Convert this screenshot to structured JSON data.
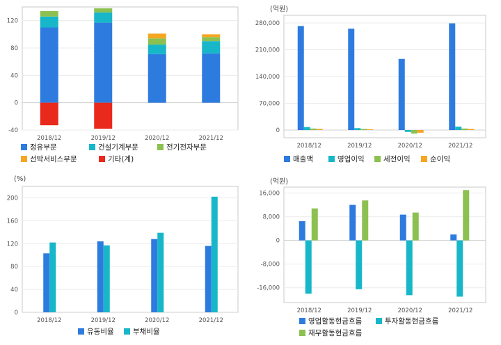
{
  "chart_data": [
    {
      "type": "bar",
      "stacked": true,
      "unit_label": "",
      "categories": [
        "2018/12",
        "2019/12",
        "2020/12",
        "2021/12"
      ],
      "ylim": [
        -40,
        140
      ],
      "yticks": [
        -40,
        0,
        40,
        80,
        120
      ],
      "grid": true,
      "legend_position": "bottom",
      "series": [
        {
          "name": "정유부문",
          "color": "#2e7be0",
          "values": [
            110,
            117,
            71,
            72
          ]
        },
        {
          "name": "건설기계부문",
          "color": "#17b7c9",
          "values": [
            16,
            15,
            14,
            18
          ]
        },
        {
          "name": "전기전자부문",
          "color": "#8cc152",
          "values": [
            8,
            6,
            9,
            6
          ]
        },
        {
          "name": "선박서비스부문",
          "color": "#f5a623",
          "values": [
            0,
            0,
            7,
            4
          ]
        },
        {
          "name": "기타(계)",
          "color": "#e8291c",
          "values": [
            -33,
            -38,
            0,
            0
          ]
        }
      ]
    },
    {
      "type": "bar",
      "unit_label": "(억원)",
      "categories": [
        "2018/12",
        "2019/12",
        "2020/12",
        "2021/12"
      ],
      "ylim": [
        -20000,
        300000
      ],
      "yticks": [
        0,
        70000,
        140000,
        210000,
        280000
      ],
      "grid": true,
      "legend_position": "bottom",
      "series": [
        {
          "name": "매출액",
          "color": "#2e7be0",
          "values": [
            272000,
            265000,
            186000,
            279000
          ]
        },
        {
          "name": "영업이익",
          "color": "#17b7c9",
          "values": [
            8000,
            5000,
            -5000,
            9000
          ]
        },
        {
          "name": "세전이익",
          "color": "#8cc152",
          "values": [
            4000,
            3000,
            -9000,
            4000
          ]
        },
        {
          "name": "순이익",
          "color": "#f5a623",
          "values": [
            3000,
            2000,
            -7000,
            3000
          ]
        }
      ]
    },
    {
      "type": "bar",
      "unit_label": "(%)",
      "categories": [
        "2018/12",
        "2019/12",
        "2020/12",
        "2021/12"
      ],
      "ylim": [
        0,
        220
      ],
      "yticks": [
        0,
        40,
        80,
        120,
        160,
        200
      ],
      "grid": true,
      "legend_position": "bottom",
      "series": [
        {
          "name": "유동비율",
          "color": "#2e7be0",
          "values": [
            103,
            124,
            128,
            116
          ]
        },
        {
          "name": "부채비율",
          "color": "#17b7c9",
          "values": [
            122,
            117,
            139,
            202
          ]
        }
      ]
    },
    {
      "type": "bar",
      "unit_label": "(억원)",
      "categories": [
        "2018/12",
        "2019/12",
        "2020/12",
        "2021/12"
      ],
      "ylim": [
        -21000,
        18000
      ],
      "yticks": [
        -16000,
        -8000,
        0,
        8000,
        16000
      ],
      "grid": true,
      "legend_position": "bottom",
      "series": [
        {
          "name": "영업활동현금흐름",
          "color": "#2e7be0",
          "values": [
            6500,
            12000,
            8700,
            2000
          ]
        },
        {
          "name": "투자활동현금흐름",
          "color": "#17b7c9",
          "values": [
            -18000,
            -16500,
            -18500,
            -19000
          ]
        },
        {
          "name": "재무활동현금흐름",
          "color": "#8cc152",
          "values": [
            10800,
            13500,
            9400,
            17000
          ]
        }
      ]
    }
  ]
}
